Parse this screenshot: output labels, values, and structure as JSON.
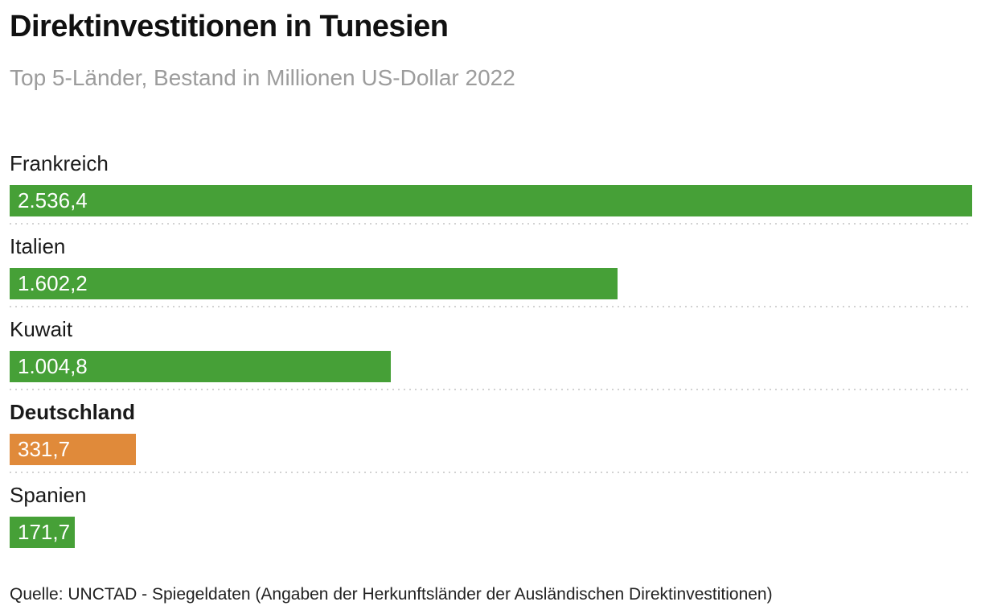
{
  "header": {
    "title": "Direktinvestitionen in Tunesien",
    "subtitle": "Top 5-Länder, Bestand in Millionen US-Dollar 2022"
  },
  "chart_data": {
    "type": "bar",
    "orientation": "horizontal",
    "title": "Direktinvestitionen in Tunesien",
    "subtitle": "Top 5-Länder, Bestand in Millionen US-Dollar 2022",
    "unit": "Millionen US-Dollar",
    "year": "2022",
    "categories": [
      "Frankreich",
      "Italien",
      "Kuwait",
      "Deutschland",
      "Spanien"
    ],
    "values": [
      2536.4,
      1602.2,
      1004.8,
      331.7,
      171.7
    ],
    "value_labels": [
      "2.536,4",
      "1.602,2",
      "1.004,8",
      "331,7",
      "171,7"
    ],
    "highlight_index": 3,
    "bar_color": "#46a037",
    "highlight_color": "#e08a3a",
    "xlim": [
      0,
      2536.4
    ],
    "grid": false,
    "legend": false
  },
  "footer": {
    "source": "Quelle: UNCTAD - Spiegeldaten (Angaben der Herkunftsländer der Ausländischen Direktinvestitionen)"
  }
}
